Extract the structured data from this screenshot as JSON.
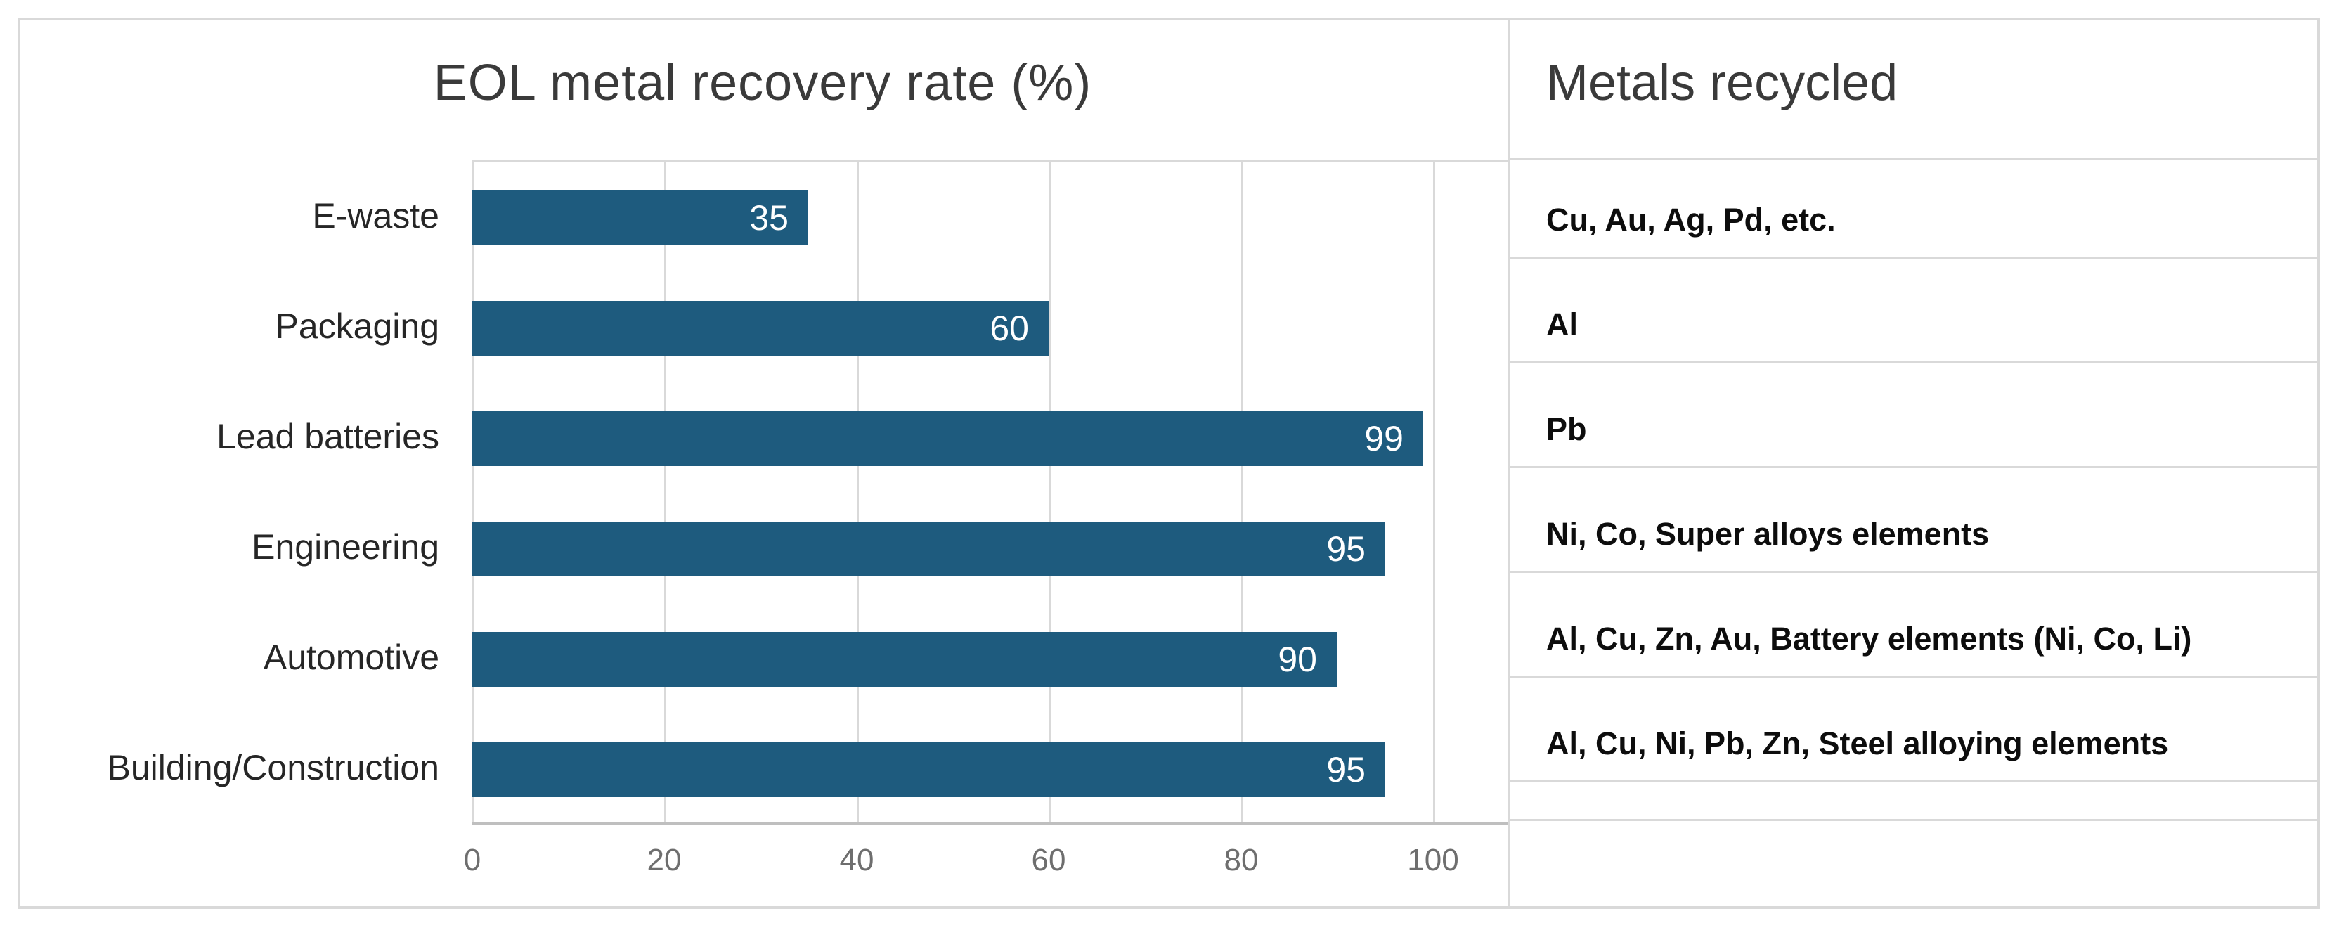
{
  "chart_data": {
    "type": "bar",
    "orientation": "horizontal",
    "title": "EOL metal recovery rate (%)",
    "categories": [
      "E-waste",
      "Packaging",
      "Lead batteries",
      "Engineering",
      "Automotive",
      "Building/Construction"
    ],
    "values": [
      35,
      60,
      99,
      95,
      90,
      95
    ],
    "xlabel": "",
    "ylabel": "",
    "xlim": [
      0,
      100
    ],
    "x_ticks": [
      0,
      20,
      40,
      60,
      80,
      100
    ],
    "grid": "vertical-gridlines-on",
    "value_labels_position": "inside-end",
    "bar_color": "#1e5b7e",
    "value_label_color": "#ffffff",
    "gridline_color": "#d9d9d9",
    "axis_line_color": "#bfbfbf"
  },
  "metals_table": {
    "header": "Metals recycled",
    "rows": [
      "Cu, Au, Ag, Pd, etc.",
      "Al",
      "Pb",
      "Ni, Co, Super alloys elements",
      "Al, Cu, Zn, Au, Battery elements (Ni, Co, Li)",
      "Al, Cu, Ni, Pb, Zn, Steel alloying elements"
    ]
  }
}
